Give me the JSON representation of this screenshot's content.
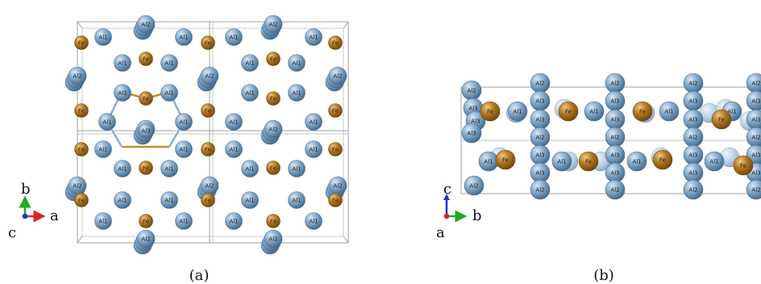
{
  "panel_a": {
    "caption": "(a)",
    "axes": {
      "x": "a",
      "y": "b",
      "out": "c"
    },
    "labels": {
      "al1": "Al1",
      "al2": "Al2",
      "al3": "Al3",
      "fe": "Fe"
    }
  },
  "panel_b": {
    "caption": "(b)",
    "axes": {
      "x": "b",
      "y": "c",
      "out": "a"
    },
    "labels": {
      "al1": "Al1",
      "al2": "Al2",
      "al3": "Al3",
      "fe": "Fe"
    }
  },
  "colors": {
    "al": "#7ea4c7",
    "al_dark": "#4d7497",
    "fe": "#b07820",
    "fe_dark": "#7a4f10",
    "cell": "#9a9a9a",
    "axis_a": "#dd2222",
    "axis_b": "#22aa22",
    "axis_c": "#2233cc"
  }
}
